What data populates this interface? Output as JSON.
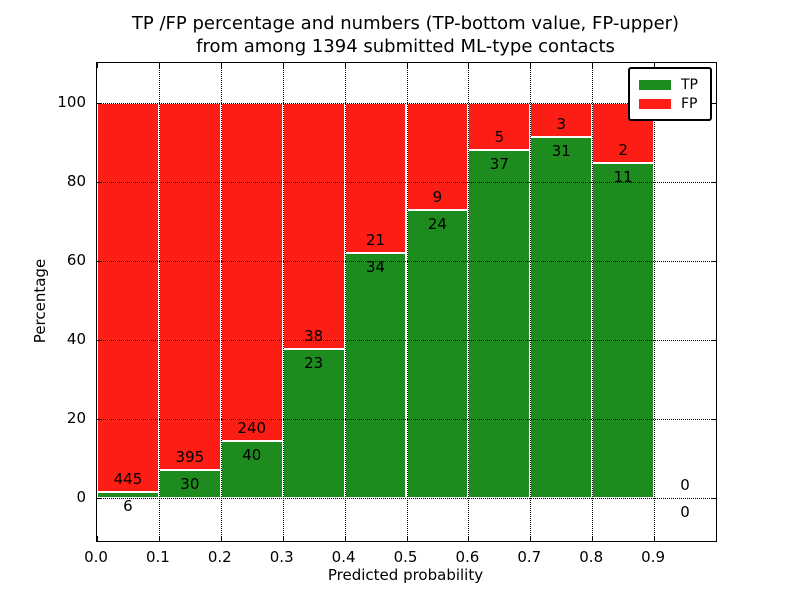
{
  "chart_data": {
    "type": "bar",
    "stacked": true,
    "normalized_to_percent": true,
    "title_lines": [
      "TP /FP percentage and numbers (TP-bottom value, FP-upper)",
      "from among 1394 submitted ML-type contacts"
    ],
    "xlabel": "Predicted probability",
    "ylabel": "Percentage",
    "xlim": [
      0.0,
      1.0
    ],
    "ylim": [
      -11,
      110
    ],
    "bin_width": 0.1,
    "xticks": [
      0.0,
      0.1,
      0.2,
      0.3,
      0.4,
      0.5,
      0.6,
      0.7,
      0.8,
      0.9
    ],
    "xtick_labels": [
      "0.0",
      "0.1",
      "0.2",
      "0.3",
      "0.4",
      "0.5",
      "0.6",
      "0.7",
      "0.8",
      "0.9"
    ],
    "yticks": [
      0,
      20,
      40,
      60,
      80,
      100
    ],
    "ytick_labels": [
      "0",
      "20",
      "40",
      "60",
      "80",
      "100"
    ],
    "grid": "dotted",
    "categories": [
      "0.0-0.1",
      "0.1-0.2",
      "0.2-0.3",
      "0.3-0.4",
      "0.4-0.5",
      "0.5-0.6",
      "0.6-0.7",
      "0.7-0.8",
      "0.8-0.9",
      "0.9-1.0"
    ],
    "series": [
      {
        "name": "TP",
        "color": "#1e8b1e",
        "counts": [
          6,
          30,
          40,
          23,
          34,
          24,
          37,
          31,
          11,
          0
        ],
        "pct": [
          1.3,
          7.1,
          14.3,
          37.7,
          61.8,
          72.7,
          88.1,
          91.2,
          84.6,
          0
        ]
      },
      {
        "name": "FP",
        "color": "#fc1d15",
        "counts": [
          445,
          395,
          240,
          38,
          21,
          9,
          5,
          3,
          2,
          0
        ],
        "pct": [
          98.7,
          92.9,
          85.7,
          62.3,
          38.2,
          27.3,
          11.9,
          8.8,
          15.4,
          0
        ]
      }
    ],
    "total_contacts": 1394,
    "legend": {
      "position": "upper right",
      "entries": [
        "TP",
        "FP"
      ]
    },
    "bar_edge_color": "#ffffff",
    "annotation_note": "FP count printed above stack boundary, TP count below"
  }
}
